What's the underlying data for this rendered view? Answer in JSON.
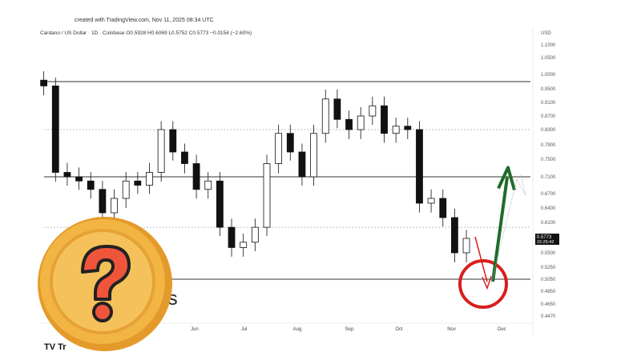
{
  "header": {
    "created": "created with TradingView.com, Nov 11, 2025 08:34 UTC",
    "symbol_line": "Cardano / US Dollar · 1D · Coinbase  O0.5928  H0.6069  L0.5752  C0.5773  −0.0154 (−2.60%)"
  },
  "overlay_text": {
    "partial_text": "ts",
    "logo_text": "TV Tr"
  },
  "chart_data": {
    "type": "candlestick",
    "title": "Cardano / US Dollar · 1D · Coinbase",
    "ylabel": "USD",
    "ylim": [
      0.447,
      1.1
    ],
    "grid": false,
    "y_ticks": [
      "1.1000",
      "1.0500",
      "1.0000",
      "0.9500",
      "0.9100",
      "0.8700",
      "0.8300",
      "0.7900",
      "0.7500",
      "0.7100",
      "0.6700",
      "0.6400",
      "0.6100",
      "0.5500",
      "0.5250",
      "0.5050",
      "0.4850",
      "0.4650",
      "0.4470"
    ],
    "x_ticks": [
      "Jun",
      "Jul",
      "Aug",
      "Sep",
      "Oct",
      "Nov",
      "Dec"
    ],
    "last_price": {
      "value": "0.5773",
      "countdown": "15:25:42"
    },
    "horizontal_levels": [
      {
        "price": 0.975,
        "style": "solid"
      },
      {
        "price": 0.83,
        "style": "dotted"
      },
      {
        "price": 0.71,
        "style": "solid"
      },
      {
        "price": 0.6,
        "style": "dotted"
      },
      {
        "price": 0.505,
        "style": "solid"
      }
    ],
    "weekly_closes_approx": {
      "start": "2025-03-03",
      "values": [
        0.96,
        0.72,
        0.71,
        0.7,
        0.68,
        0.63,
        0.66,
        0.7,
        0.69,
        0.72,
        0.83,
        0.77,
        0.74,
        0.68,
        0.7,
        0.6,
        0.56,
        0.57,
        0.6,
        0.74,
        0.82,
        0.77,
        0.71,
        0.82,
        0.92,
        0.86,
        0.83,
        0.87,
        0.9,
        0.82,
        0.84,
        0.83,
        0.65,
        0.66,
        0.62,
        0.55,
        0.5773
      ]
    },
    "annotations": {
      "down_arrow_target": 0.49,
      "up_arrow_target": 0.72,
      "colors": {
        "down": "#d81e1e",
        "up": "#1f6b2a",
        "candle": "#111111"
      }
    }
  }
}
